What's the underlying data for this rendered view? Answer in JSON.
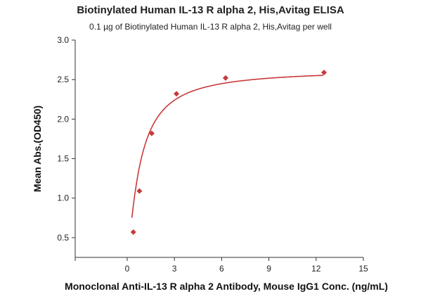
{
  "chart_data": {
    "type": "scatter",
    "title": "Biotinylated Human IL-13 R alpha 2, His,Avitag ELISA",
    "subtitle": "0.1 µg of Biotinylated Human IL-13 R alpha 2, His,Avitag per well",
    "xlabel": "Monoclonal Anti-IL-13 R alpha 2 Antibody, Mouse IgG1 Conc. (ng/mL)",
    "ylabel": "Mean Abs.(OD450)",
    "xlim": [
      -3.3,
      15
    ],
    "ylim": [
      0.25,
      3.0
    ],
    "x_ticks": [
      0,
      3,
      6,
      9,
      12,
      15
    ],
    "x_tick_labels": [
      "0",
      "3",
      "6",
      "9",
      "12",
      "15"
    ],
    "y_ticks": [
      0.5,
      1.0,
      1.5,
      2.0,
      2.5,
      3.0
    ],
    "y_tick_labels": [
      "0.5",
      "1.0",
      "1.5",
      "2.0",
      "2.5",
      "3.0"
    ],
    "grid": false,
    "marker": "diamond",
    "color": "#c8393a",
    "series": [
      {
        "x": [
          0.39,
          0.78,
          1.56,
          3.13,
          6.25,
          12.5
        ],
        "y": [
          0.57,
          1.09,
          1.82,
          2.32,
          2.52,
          2.59
        ]
      }
    ],
    "fit_curve": {
      "bottom": 0.2,
      "top": 2.63,
      "ec50": 0.8,
      "hill": 1.25
    }
  }
}
